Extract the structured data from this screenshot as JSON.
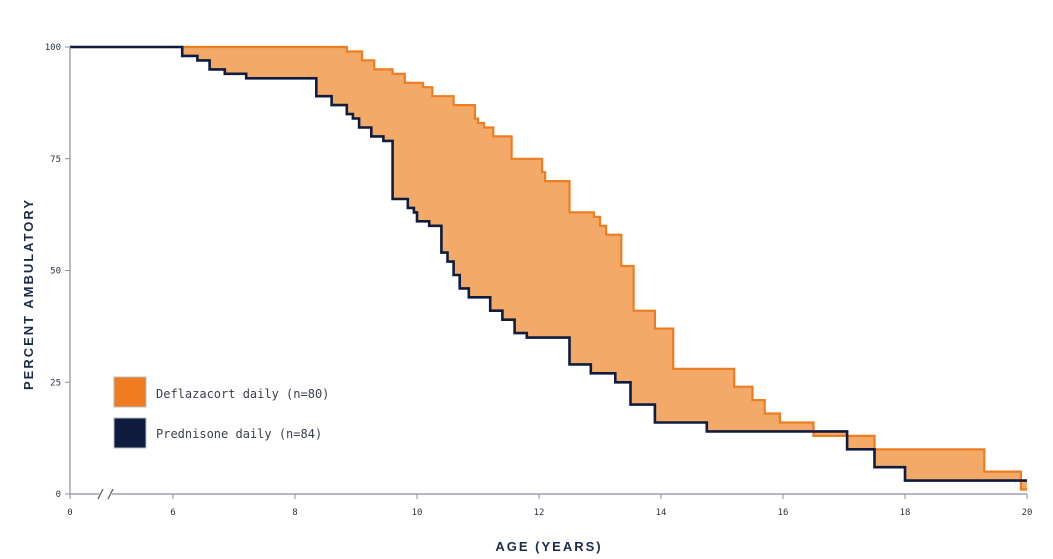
{
  "chart_data": {
    "type": "line",
    "subtype": "kaplan-meier-step",
    "xlabel": "AGE (YEARS)",
    "ylabel": "PERCENT AMBULATORY",
    "xlim": [
      0,
      20
    ],
    "ylim": [
      0,
      100
    ],
    "x_ticks": [
      "0",
      "6",
      "8",
      "10",
      "12",
      "14",
      "16",
      "18",
      "20"
    ],
    "y_ticks": [
      "0",
      "25",
      "50",
      "75",
      "100"
    ],
    "axis_break_after": "0",
    "fill_between_series": true,
    "series": [
      {
        "name": "Deflazacort daily (n=80)",
        "color": "#ee7d22",
        "fill": "#f3a968",
        "points": [
          [
            0,
            100
          ],
          [
            8.85,
            100
          ],
          [
            8.85,
            99
          ],
          [
            9.1,
            99
          ],
          [
            9.1,
            97
          ],
          [
            9.3,
            97
          ],
          [
            9.3,
            95
          ],
          [
            9.6,
            95
          ],
          [
            9.6,
            94
          ],
          [
            9.8,
            94
          ],
          [
            9.8,
            92
          ],
          [
            10.1,
            92
          ],
          [
            10.1,
            91
          ],
          [
            10.25,
            91
          ],
          [
            10.25,
            89
          ],
          [
            10.6,
            89
          ],
          [
            10.6,
            87
          ],
          [
            10.95,
            87
          ],
          [
            10.95,
            84
          ],
          [
            11.0,
            84
          ],
          [
            11.0,
            83
          ],
          [
            11.1,
            83
          ],
          [
            11.1,
            82
          ],
          [
            11.25,
            82
          ],
          [
            11.25,
            80
          ],
          [
            11.55,
            80
          ],
          [
            11.55,
            75
          ],
          [
            12.05,
            75
          ],
          [
            12.05,
            72
          ],
          [
            12.1,
            72
          ],
          [
            12.1,
            70
          ],
          [
            12.5,
            70
          ],
          [
            12.5,
            63
          ],
          [
            12.9,
            63
          ],
          [
            12.9,
            62
          ],
          [
            13.0,
            62
          ],
          [
            13.0,
            60
          ],
          [
            13.1,
            60
          ],
          [
            13.1,
            58
          ],
          [
            13.35,
            58
          ],
          [
            13.35,
            51
          ],
          [
            13.55,
            51
          ],
          [
            13.55,
            41
          ],
          [
            13.9,
            41
          ],
          [
            13.9,
            37
          ],
          [
            14.2,
            37
          ],
          [
            14.2,
            28
          ],
          [
            15.2,
            28
          ],
          [
            15.2,
            24
          ],
          [
            15.5,
            24
          ],
          [
            15.5,
            21
          ],
          [
            15.7,
            21
          ],
          [
            15.7,
            18
          ],
          [
            15.95,
            18
          ],
          [
            15.95,
            16
          ],
          [
            16.5,
            16
          ],
          [
            16.5,
            13
          ],
          [
            17.5,
            13
          ],
          [
            17.5,
            10
          ],
          [
            18.3,
            10
          ],
          [
            18.3,
            10
          ],
          [
            19.3,
            10
          ],
          [
            19.3,
            5
          ],
          [
            19.9,
            5
          ],
          [
            19.9,
            1
          ],
          [
            20,
            1
          ]
        ]
      },
      {
        "name": "Prednisone daily (n=84)",
        "color": "#0f1c3f",
        "fill": "#0f1c3f",
        "points": [
          [
            0,
            100
          ],
          [
            6.15,
            100
          ],
          [
            6.15,
            98
          ],
          [
            6.4,
            98
          ],
          [
            6.4,
            97
          ],
          [
            6.6,
            97
          ],
          [
            6.6,
            95
          ],
          [
            6.85,
            95
          ],
          [
            6.85,
            94
          ],
          [
            7.2,
            94
          ],
          [
            7.2,
            93
          ],
          [
            8.35,
            93
          ],
          [
            8.35,
            89
          ],
          [
            8.6,
            89
          ],
          [
            8.6,
            87
          ],
          [
            8.85,
            87
          ],
          [
            8.85,
            85
          ],
          [
            8.95,
            85
          ],
          [
            8.95,
            84
          ],
          [
            9.05,
            84
          ],
          [
            9.05,
            82
          ],
          [
            9.25,
            82
          ],
          [
            9.25,
            80
          ],
          [
            9.45,
            80
          ],
          [
            9.45,
            79
          ],
          [
            9.6,
            79
          ],
          [
            9.6,
            66
          ],
          [
            9.85,
            66
          ],
          [
            9.85,
            64
          ],
          [
            9.95,
            64
          ],
          [
            9.95,
            63
          ],
          [
            10.0,
            63
          ],
          [
            10.0,
            61
          ],
          [
            10.2,
            61
          ],
          [
            10.2,
            60
          ],
          [
            10.4,
            60
          ],
          [
            10.4,
            54
          ],
          [
            10.5,
            54
          ],
          [
            10.5,
            52
          ],
          [
            10.6,
            52
          ],
          [
            10.6,
            49
          ],
          [
            10.7,
            49
          ],
          [
            10.7,
            46
          ],
          [
            10.85,
            46
          ],
          [
            10.85,
            44
          ],
          [
            11.2,
            44
          ],
          [
            11.2,
            41
          ],
          [
            11.4,
            41
          ],
          [
            11.4,
            39
          ],
          [
            11.6,
            39
          ],
          [
            11.6,
            36
          ],
          [
            11.8,
            36
          ],
          [
            11.8,
            35
          ],
          [
            12.5,
            35
          ],
          [
            12.5,
            29
          ],
          [
            12.85,
            29
          ],
          [
            12.85,
            27
          ],
          [
            13.25,
            27
          ],
          [
            13.25,
            25
          ],
          [
            13.5,
            25
          ],
          [
            13.5,
            20
          ],
          [
            13.9,
            20
          ],
          [
            13.9,
            16
          ],
          [
            14.75,
            16
          ],
          [
            14.75,
            14
          ],
          [
            16.3,
            14
          ],
          [
            16.3,
            14
          ],
          [
            17.05,
            14
          ],
          [
            17.05,
            10
          ],
          [
            17.5,
            10
          ],
          [
            17.5,
            6
          ],
          [
            18.0,
            6
          ],
          [
            18.0,
            3
          ],
          [
            20,
            3
          ]
        ]
      }
    ]
  },
  "legend": {
    "items": [
      {
        "label": "Deflazacort daily (n=80)",
        "color": "#ee7d22"
      },
      {
        "label": "Prednisone daily (n=84)",
        "color": "#0f1c3f"
      }
    ]
  }
}
